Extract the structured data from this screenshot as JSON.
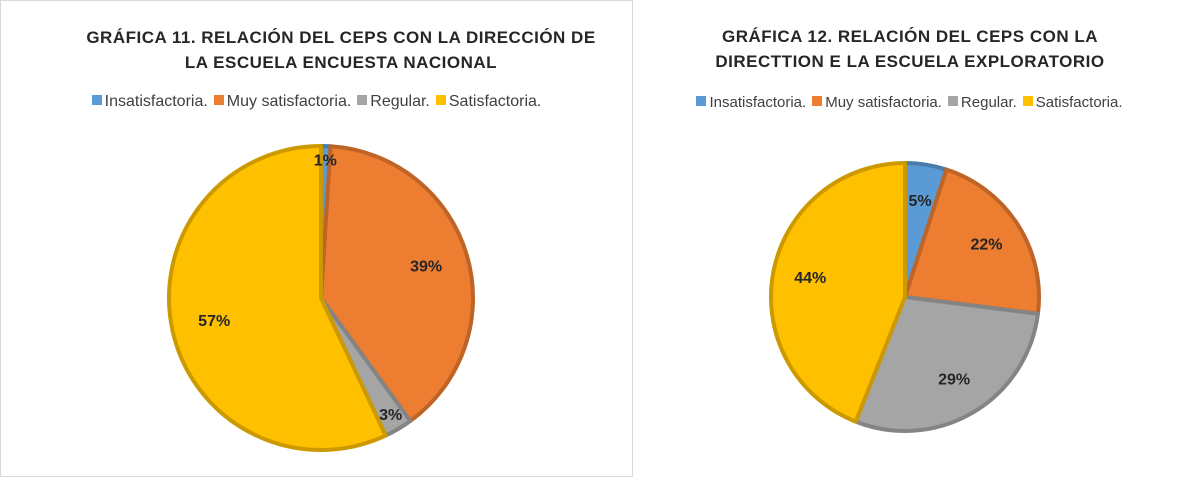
{
  "chart_data": [
    {
      "type": "pie",
      "title": "GRÁFICA 11. RELACIÓN DEL CEPS CON LA DIRECCIÓN DE LA ESCUELA ENCUESTA NACIONAL",
      "categories": [
        "Insatisfactoria.",
        "Muy satisfactoria.",
        "Regular.",
        "Satisfactoria."
      ],
      "values": [
        1,
        39,
        3,
        57
      ],
      "value_labels": [
        "1%",
        "39%",
        "3%",
        "57%"
      ],
      "colors": [
        "#5b9bd5",
        "#ed7d31",
        "#a5a5a5",
        "#ffc000"
      ],
      "legend": "top"
    },
    {
      "type": "pie",
      "title": "GRÁFICA 12. RELACIÓN DEL CEPS CON LA DIRECTTION E LA ESCUELA EXPLORATORIO",
      "categories": [
        "Insatisfactoria.",
        "Muy satisfactoria.",
        "Regular.",
        "Satisfactoria."
      ],
      "values": [
        5,
        22,
        29,
        44
      ],
      "value_labels": [
        "5%",
        "22%",
        "29%",
        "44%"
      ],
      "colors": [
        "#5b9bd5",
        "#ed7d31",
        "#a5a5a5",
        "#ffc000"
      ],
      "legend": "top"
    }
  ]
}
